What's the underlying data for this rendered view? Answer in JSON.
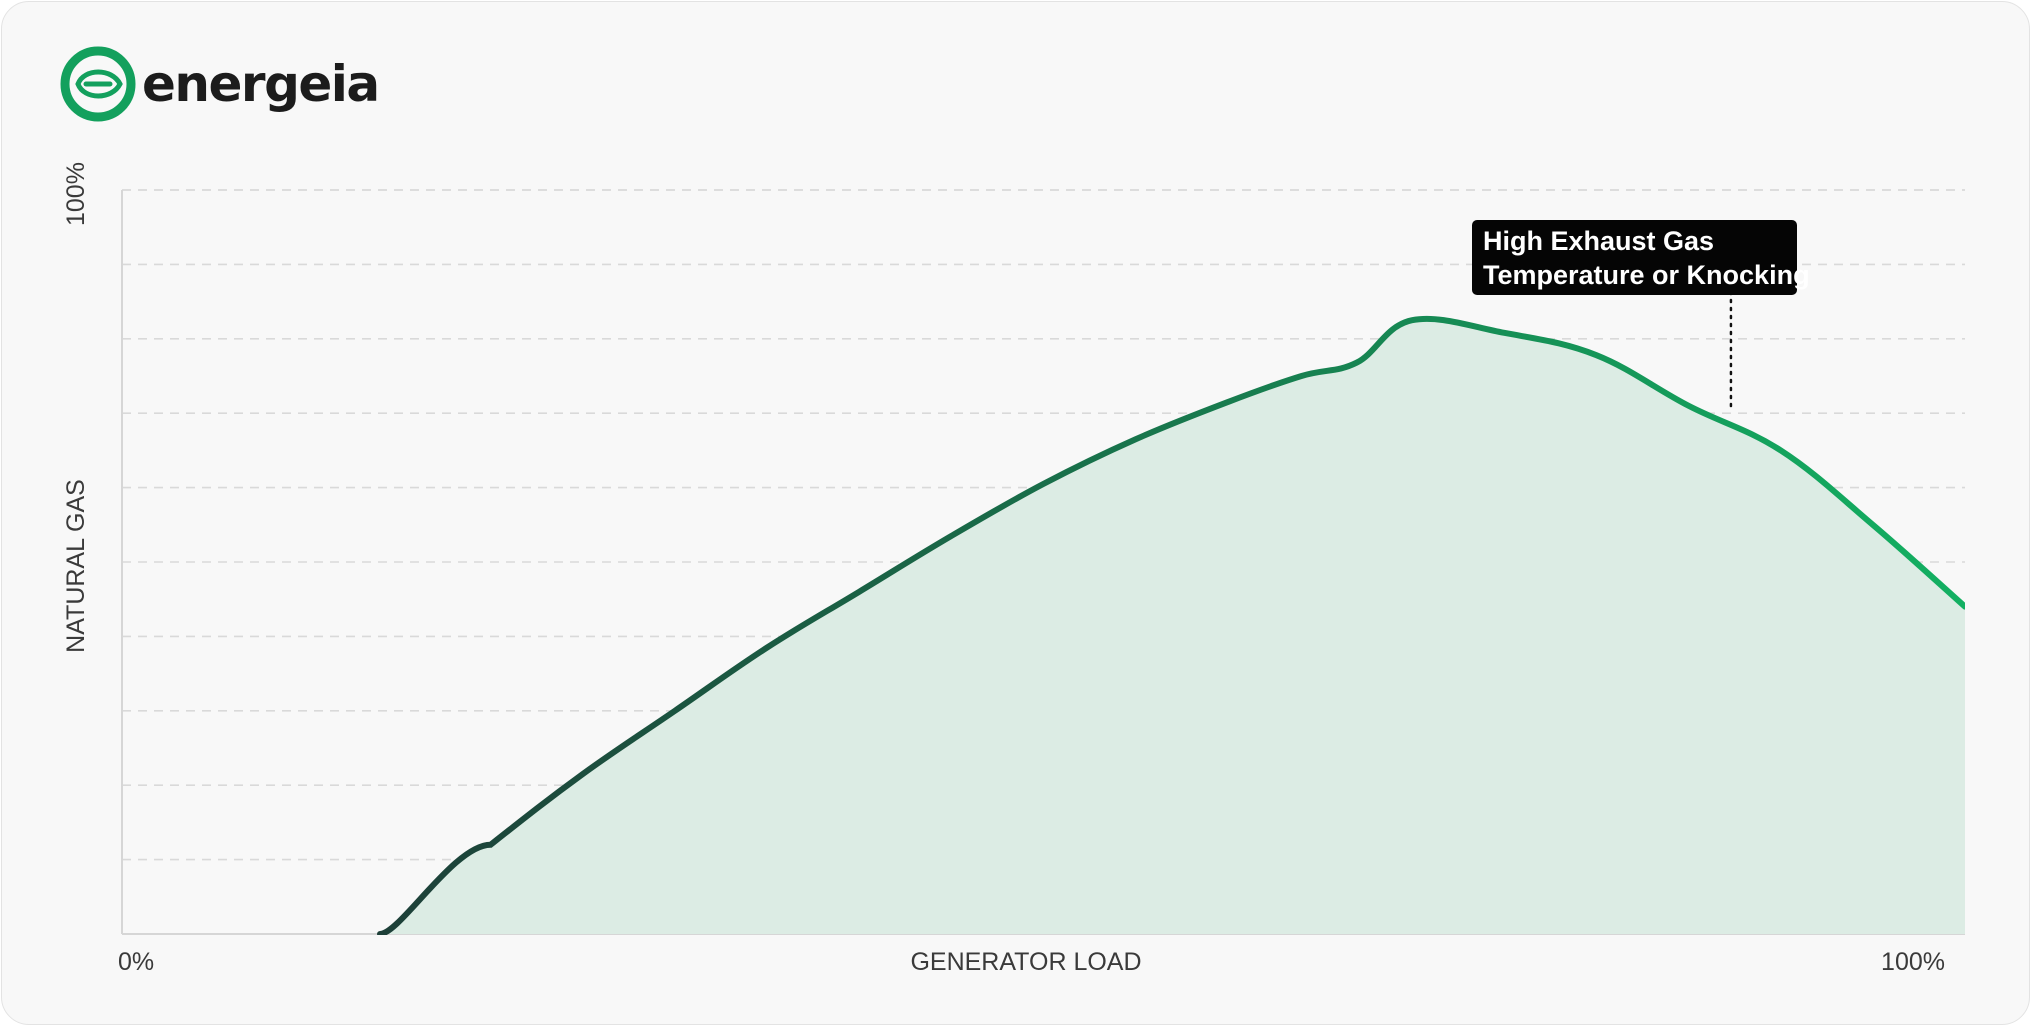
{
  "brand": {
    "name": "energeia",
    "logo_icon": "leaf-e-icon",
    "accent_color": "#13a05d"
  },
  "chart_data": {
    "type": "area",
    "xlabel": "GENERATOR LOAD",
    "ylabel": "NATURAL GAS",
    "x_tick_labels": [
      "0%",
      "100%"
    ],
    "y_tick_labels": [
      "100%"
    ],
    "xlim": [
      0,
      100
    ],
    "ylim": [
      0,
      100
    ],
    "grid": true,
    "grid_style": "dashed-horizontal",
    "x": [
      0,
      14,
      20,
      25,
      30,
      35,
      40,
      45,
      50,
      55,
      60,
      64,
      67,
      70,
      75,
      80,
      85,
      90,
      95,
      100
    ],
    "values": [
      0,
      0,
      12,
      21.5,
      30,
      38.5,
      46,
      53.5,
      60.5,
      66.5,
      71.5,
      75,
      76.8,
      82.5,
      80.8,
      77.8,
      71,
      65,
      55,
      44
    ],
    "annotation": {
      "text_lines": [
        "High Exhaust Gas",
        "Temperature or Knocking"
      ],
      "x": 87.3,
      "y": 70.4
    },
    "colors": {
      "line_start": "#1d3f38",
      "line_end": "#13b062",
      "fill": "#dcece4",
      "grid": "#d9d9d9",
      "annotation_bg": "#050505",
      "annotation_text": "#ffffff"
    }
  }
}
